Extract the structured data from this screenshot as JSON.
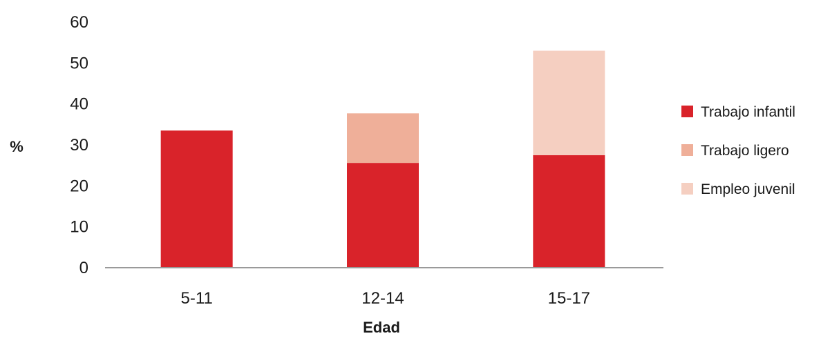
{
  "chart_data": {
    "type": "bar",
    "stacked": true,
    "title": "",
    "xlabel": "Edad",
    "ylabel": "%",
    "ylim": [
      0,
      60
    ],
    "yticks": [
      "0",
      "10",
      "20",
      "30",
      "40",
      "50",
      "60"
    ],
    "categories": [
      "5-11",
      "12-14",
      "15-17"
    ],
    "series": [
      {
        "name": "Trabajo infantil",
        "color": "#d9232a",
        "values": [
          33.5,
          25.6,
          27.5
        ]
      },
      {
        "name": "Trabajo ligero",
        "color": "#efaf99",
        "values": [
          0,
          12.1,
          0
        ]
      },
      {
        "name": "Empleo juvenil",
        "color": "#f5cfc1",
        "values": [
          0,
          0,
          25.5
        ]
      }
    ],
    "grid": false,
    "legend_position": "right"
  }
}
